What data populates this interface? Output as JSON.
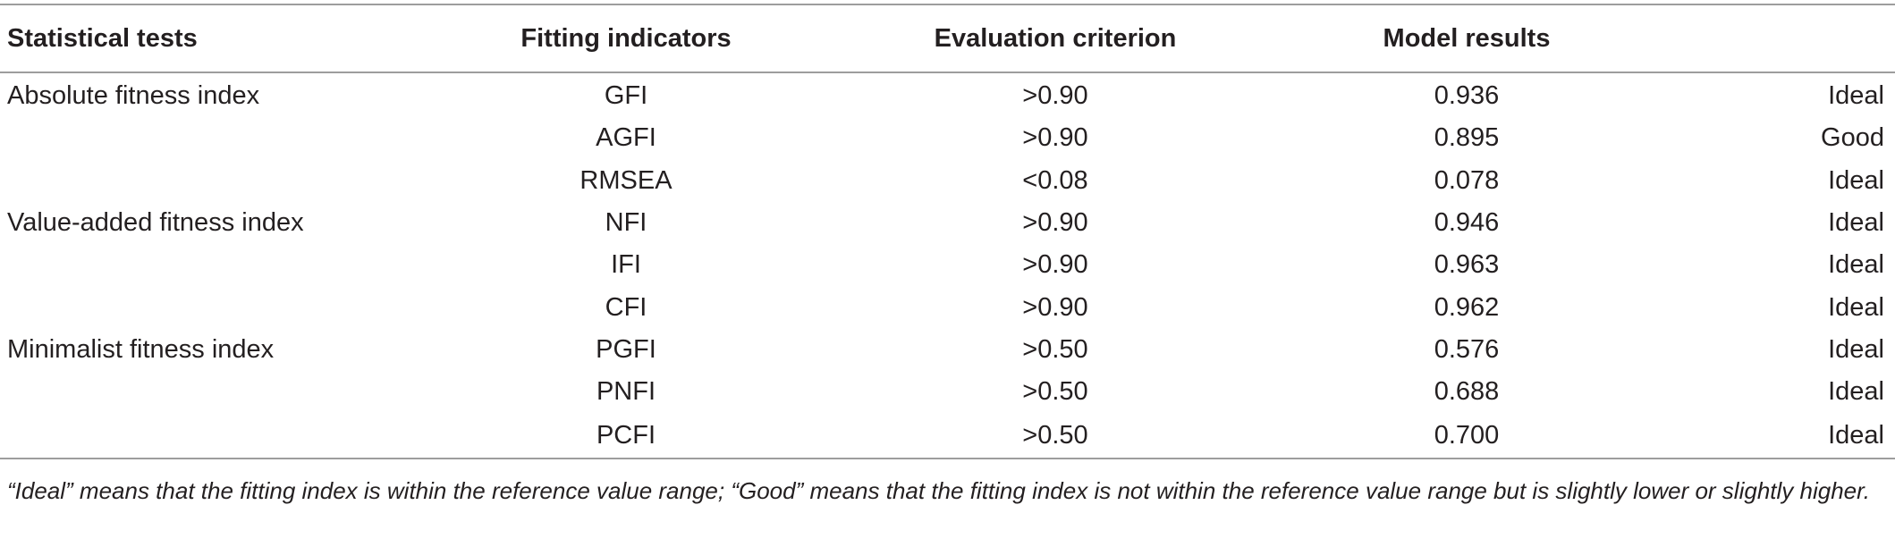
{
  "table": {
    "headers": [
      "Statistical tests",
      "Fitting indicators",
      "Evaluation criterion",
      "Model results",
      ""
    ],
    "rows": [
      {
        "test": "Absolute fitness index",
        "indicator": "GFI",
        "criterion": ">0.90",
        "result": "0.936",
        "quality": "Ideal"
      },
      {
        "test": "",
        "indicator": "AGFI",
        "criterion": ">0.90",
        "result": "0.895",
        "quality": "Good"
      },
      {
        "test": "",
        "indicator": "RMSEA",
        "criterion": "<0.08",
        "result": "0.078",
        "quality": "Ideal"
      },
      {
        "test": "Value-added fitness index",
        "indicator": "NFI",
        "criterion": ">0.90",
        "result": "0.946",
        "quality": "Ideal"
      },
      {
        "test": "",
        "indicator": "IFI",
        "criterion": ">0.90",
        "result": "0.963",
        "quality": "Ideal"
      },
      {
        "test": "",
        "indicator": "CFI",
        "criterion": ">0.90",
        "result": "0.962",
        "quality": "Ideal"
      },
      {
        "test": "Minimalist fitness index",
        "indicator": "PGFI",
        "criterion": ">0.50",
        "result": "0.576",
        "quality": "Ideal"
      },
      {
        "test": "",
        "indicator": "PNFI",
        "criterion": ">0.50",
        "result": "0.688",
        "quality": "Ideal"
      },
      {
        "test": "",
        "indicator": "PCFI",
        "criterion": ">0.50",
        "result": "0.700",
        "quality": "Ideal"
      }
    ]
  },
  "footnote": "“Ideal” means that the fitting index is within the reference value range; “Good” means that the fitting index is not within the reference value range but is slightly lower or slightly higher."
}
